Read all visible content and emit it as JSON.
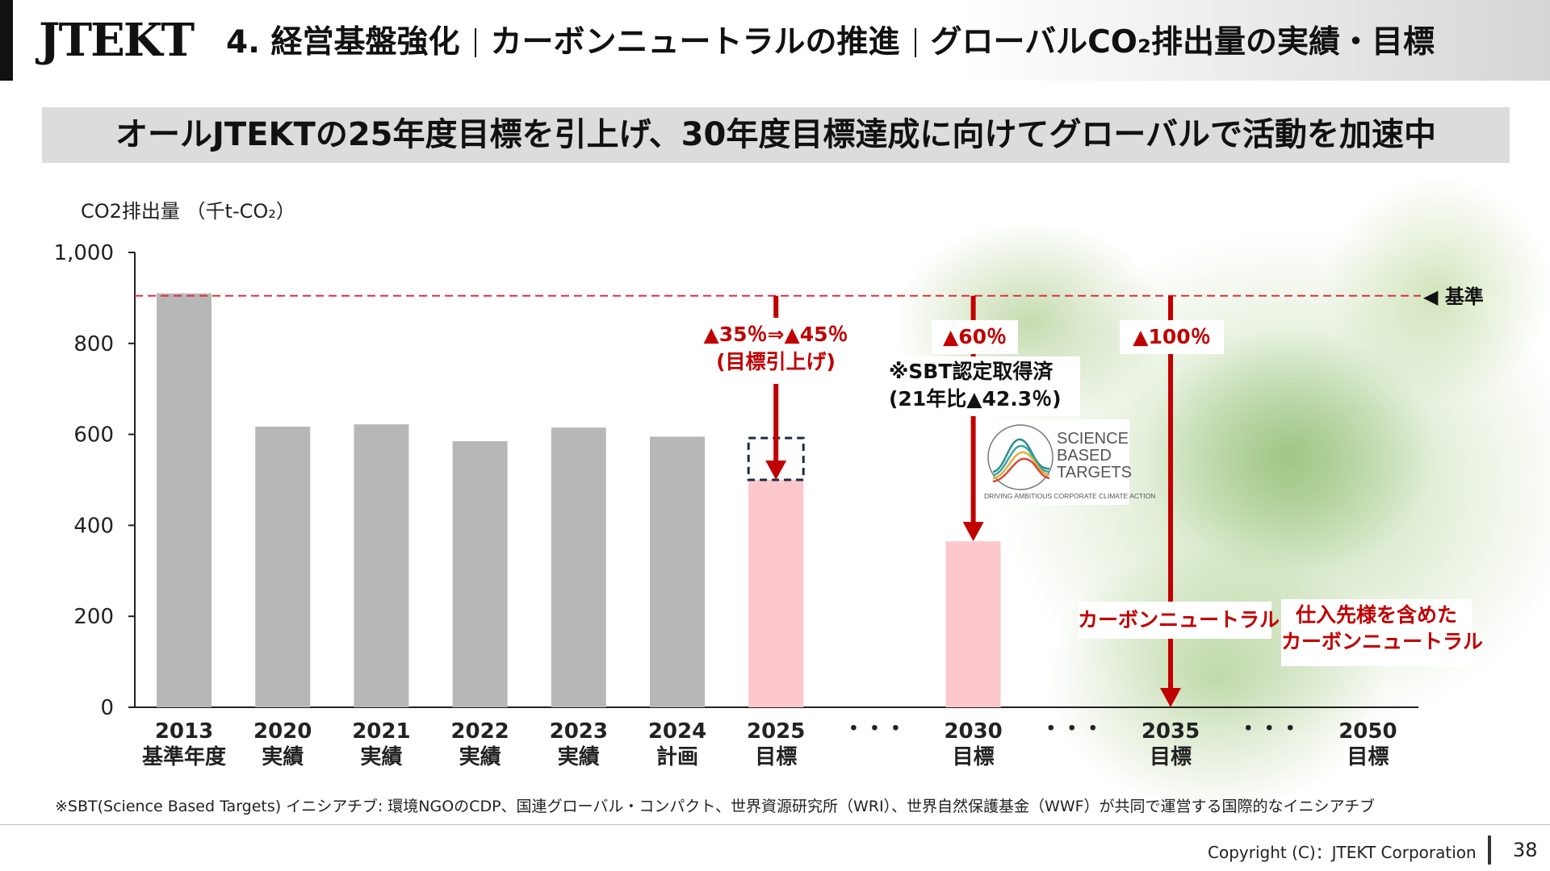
{
  "header": {
    "logo": "JTEKT",
    "title_section": "4. 経営基盤強化",
    "title_topic": "カーボンニュートラルの推進",
    "title_sub": "グローバルCO₂排出量の実績・目標"
  },
  "banner": {
    "text": "オールJTEKTの25年度目標を引上げ、30年度目標達成に向けてグローバルで活動を加速中"
  },
  "chart_data": {
    "type": "bar",
    "ylabel": "CO2排出量 （千t-CO₂）",
    "ylim": [
      0,
      1000
    ],
    "yticks": [
      "0",
      "200",
      "400",
      "600",
      "800",
      "1,000"
    ],
    "categories": [
      {
        "year": "2013",
        "sub": "基準年度"
      },
      {
        "year": "2020",
        "sub": "実績"
      },
      {
        "year": "2021",
        "sub": "実績"
      },
      {
        "year": "2022",
        "sub": "実績"
      },
      {
        "year": "2023",
        "sub": "実績"
      },
      {
        "year": "2024",
        "sub": "計画"
      },
      {
        "year": "2025",
        "sub": "目標"
      },
      {
        "year": "・・・",
        "sub": ""
      },
      {
        "year": "2030",
        "sub": "目標"
      },
      {
        "year": "・・・",
        "sub": ""
      },
      {
        "year": "2035",
        "sub": "目標"
      },
      {
        "year": "・・・",
        "sub": ""
      },
      {
        "year": "2050",
        "sub": "目標"
      }
    ],
    "values": [
      910,
      617,
      622,
      585,
      615,
      595,
      500,
      null,
      365,
      null,
      0,
      null,
      0
    ],
    "previous_target_2025": 592,
    "bar_colors": {
      "actual": "#b7b7b7",
      "target": "#fcc8cc",
      "arrow": "#c00000",
      "baseline": "#e0303a"
    },
    "baseline": {
      "value": 910,
      "label": "◀ 基準"
    },
    "annotations": {
      "target_2025": [
        "▲35％⇒▲45％",
        "(目標引上げ)"
      ],
      "target_2030": "▲60％",
      "target_2035": "▲100％",
      "sbt_note": [
        "※SBT認定取得済",
        "(21年比▲42.3％)"
      ],
      "cn_2035": "カーボンニュートラル",
      "cn_2050": [
        "仕入先様を含めた",
        "カーボンニュートラル"
      ]
    }
  },
  "sbt_logo": {
    "lines": [
      "SCIENCE",
      "BASED",
      "TARGETS"
    ],
    "tagline": "DRIVING AMBITIOUS CORPORATE CLIMATE ACTION"
  },
  "footnote": "※SBT(Science Based Targets) イニシアチブ: 環境NGOのCDP、国連グローバル・コンパクト、世界資源研究所（WRI）、世界自然保護基金（WWF）が共同で運営する国際的なイニシアチブ",
  "footer": {
    "copyright": "Copyright (C)：JTEKT Corporation",
    "page": "38"
  }
}
